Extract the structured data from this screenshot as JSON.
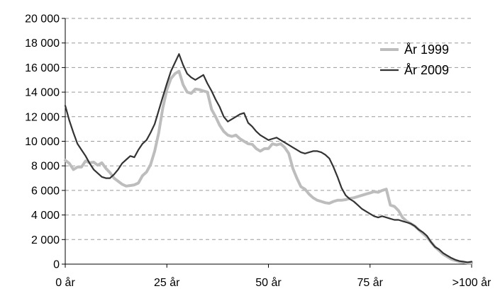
{
  "chart_data": {
    "type": "line",
    "title": "",
    "xlabel": "",
    "ylabel": "",
    "xlim": [
      0,
      100
    ],
    "ylim": [
      0,
      20000
    ],
    "y_ticks": [
      0,
      2000,
      4000,
      6000,
      8000,
      10000,
      12000,
      14000,
      16000,
      18000,
      20000
    ],
    "y_tick_labels": [
      "0",
      "2 000",
      "4 000",
      "6 000",
      "8 000",
      "10 000",
      "12 000",
      "14 000",
      "16 000",
      "18 000",
      "20 000"
    ],
    "x_ticks": [
      0,
      25,
      50,
      75,
      100
    ],
    "x_tick_labels": [
      "0 år",
      "25 år",
      "50 år",
      "75 år",
      ">100 år"
    ],
    "grid": "horizontal dashed",
    "legend_position": "top-right",
    "series": [
      {
        "name": "År 1999",
        "color": "#bdbdbd",
        "x": [
          0,
          1,
          2,
          3,
          4,
          5,
          6,
          7,
          8,
          9,
          10,
          11,
          12,
          13,
          14,
          15,
          16,
          17,
          18,
          19,
          20,
          21,
          22,
          23,
          24,
          25,
          26,
          27,
          28,
          29,
          30,
          31,
          32,
          33,
          34,
          35,
          36,
          37,
          38,
          39,
          40,
          41,
          42,
          43,
          44,
          45,
          46,
          47,
          48,
          49,
          50,
          51,
          52,
          53,
          54,
          55,
          56,
          57,
          58,
          59,
          60,
          61,
          62,
          63,
          64,
          65,
          66,
          67,
          68,
          69,
          70,
          71,
          72,
          73,
          74,
          75,
          76,
          77,
          78,
          79,
          80,
          81,
          82,
          83,
          84,
          85,
          86,
          87,
          88,
          89,
          90,
          91,
          92,
          93,
          94,
          95,
          96,
          97,
          98,
          99,
          100
        ],
        "values": [
          8450,
          8200,
          7700,
          7900,
          7900,
          8400,
          8250,
          8300,
          8050,
          8250,
          7800,
          7450,
          7000,
          6750,
          6500,
          6350,
          6400,
          6450,
          6600,
          7200,
          7500,
          8100,
          9200,
          10700,
          12700,
          14200,
          15100,
          15500,
          15700,
          14600,
          14000,
          13900,
          14250,
          14200,
          14100,
          14000,
          12600,
          12000,
          11300,
          10800,
          10500,
          10400,
          10500,
          10200,
          10000,
          9800,
          9750,
          9400,
          9200,
          9400,
          9400,
          9800,
          9700,
          9800,
          9500,
          9000,
          7800,
          7000,
          6300,
          6100,
          5700,
          5400,
          5200,
          5100,
          5000,
          4950,
          5100,
          5200,
          5200,
          5250,
          5350,
          5400,
          5500,
          5600,
          5700,
          5800,
          5900,
          5850,
          6000,
          6100,
          4800,
          4700,
          4350,
          3800,
          3500,
          3300,
          3100,
          2800,
          2500,
          2200,
          1800,
          1400,
          1100,
          800,
          600,
          400,
          300,
          200,
          150,
          100,
          100
        ]
      },
      {
        "name": "År 2009",
        "color": "#333333",
        "x": [
          0,
          1,
          2,
          3,
          4,
          5,
          6,
          7,
          8,
          9,
          10,
          11,
          12,
          13,
          14,
          15,
          16,
          17,
          18,
          19,
          20,
          21,
          22,
          23,
          24,
          25,
          26,
          27,
          28,
          29,
          30,
          31,
          32,
          33,
          34,
          35,
          36,
          37,
          38,
          39,
          40,
          41,
          42,
          43,
          44,
          45,
          46,
          47,
          48,
          49,
          50,
          51,
          52,
          53,
          54,
          55,
          56,
          57,
          58,
          59,
          60,
          61,
          62,
          63,
          64,
          65,
          66,
          67,
          68,
          69,
          70,
          71,
          72,
          73,
          74,
          75,
          76,
          77,
          78,
          79,
          80,
          81,
          82,
          83,
          84,
          85,
          86,
          87,
          88,
          89,
          90,
          91,
          92,
          93,
          94,
          95,
          96,
          97,
          98,
          99,
          100
        ],
        "values": [
          12900,
          11700,
          10700,
          9800,
          9300,
          8800,
          8200,
          7700,
          7400,
          7100,
          7000,
          7000,
          7300,
          7700,
          8200,
          8500,
          8800,
          8700,
          9300,
          9800,
          10100,
          10700,
          11400,
          12500,
          13600,
          14700,
          15700,
          16400,
          17100,
          16200,
          15500,
          15200,
          15000,
          15200,
          15400,
          14700,
          14100,
          13400,
          12800,
          12000,
          11600,
          11800,
          12000,
          12200,
          12300,
          11500,
          11200,
          10800,
          10500,
          10300,
          10100,
          10200,
          10300,
          10100,
          9900,
          9700,
          9500,
          9300,
          9100,
          9000,
          9100,
          9200,
          9200,
          9100,
          8900,
          8600,
          7900,
          7100,
          6200,
          5600,
          5300,
          5100,
          4800,
          4500,
          4300,
          4100,
          3900,
          3800,
          3900,
          3800,
          3700,
          3600,
          3600,
          3500,
          3400,
          3300,
          3100,
          2800,
          2600,
          2300,
          1800,
          1400,
          1200,
          900,
          700,
          500,
          350,
          250,
          200,
          150,
          200
        ]
      }
    ]
  }
}
